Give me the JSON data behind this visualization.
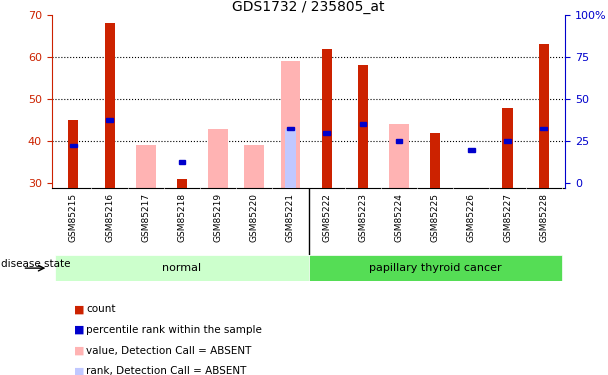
{
  "title": "GDS1732 / 235805_at",
  "samples": [
    "GSM85215",
    "GSM85216",
    "GSM85217",
    "GSM85218",
    "GSM85219",
    "GSM85220",
    "GSM85221",
    "GSM85222",
    "GSM85223",
    "GSM85224",
    "GSM85225",
    "GSM85226",
    "GSM85227",
    "GSM85228"
  ],
  "red_values": [
    45,
    68,
    null,
    31,
    null,
    null,
    null,
    62,
    58,
    null,
    42,
    null,
    48,
    63
  ],
  "blue_values": [
    39,
    45,
    null,
    35,
    null,
    null,
    43,
    42,
    44,
    40,
    null,
    38,
    40,
    43
  ],
  "pink_values": [
    null,
    null,
    39,
    null,
    43,
    39,
    59,
    null,
    null,
    44,
    null,
    null,
    null,
    null
  ],
  "lavender_values": [
    null,
    null,
    null,
    null,
    null,
    null,
    43,
    null,
    null,
    null,
    null,
    null,
    null,
    null
  ],
  "ylim": [
    29,
    70
  ],
  "yticks": [
    30,
    40,
    50,
    60,
    70
  ],
  "y2ticks_labels": [
    "0",
    "25",
    "50",
    "75",
    "100%"
  ],
  "normal_indices": [
    0,
    1,
    2,
    3,
    4,
    5,
    6
  ],
  "cancer_indices": [
    7,
    8,
    9,
    10,
    11,
    12,
    13
  ],
  "disease_label_normal": "normal",
  "disease_label_cancer": "papillary thyroid cancer",
  "disease_state_label": "disease state",
  "legend_labels": [
    "count",
    "percentile rank within the sample",
    "value, Detection Call = ABSENT",
    "rank, Detection Call = ABSENT"
  ],
  "red_color": "#cc2200",
  "blue_color": "#0000cc",
  "pink_color": "#ffb3b3",
  "lavender_color": "#c0c8ff",
  "normal_bg": "#ccffcc",
  "cancer_bg": "#55dd55",
  "xticklabel_bg": "#d8d8d8",
  "plot_bg": "#ffffff"
}
